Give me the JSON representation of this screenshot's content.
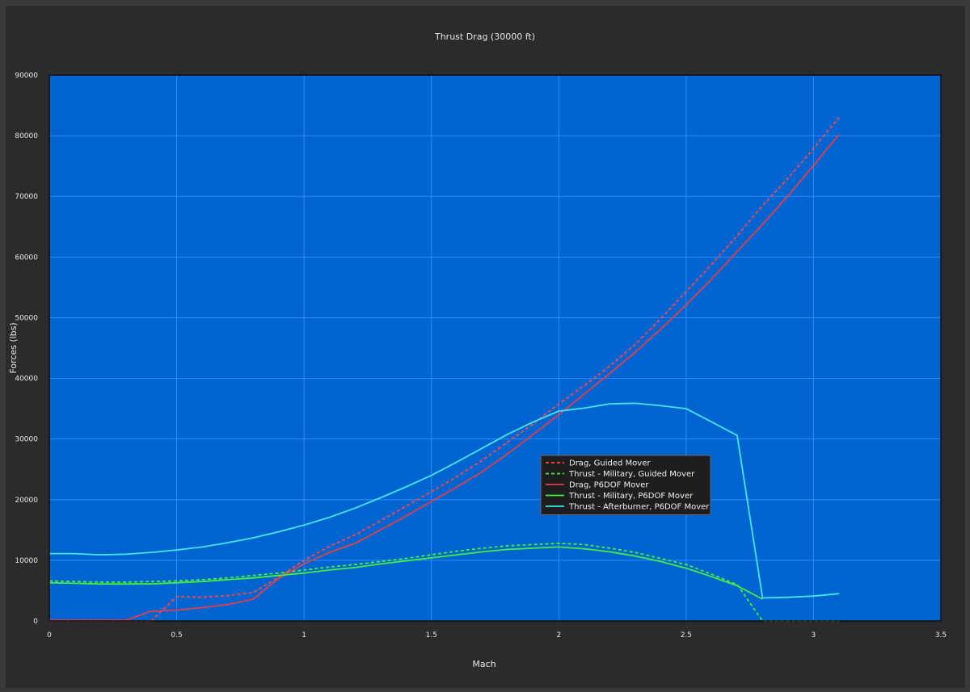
{
  "chart_data": {
    "type": "line",
    "title": "Thrust Drag (30000 ft)",
    "xlabel": "Mach",
    "ylabel": "Forces (lbs)",
    "xlim": [
      0,
      3.5
    ],
    "ylim": [
      0,
      90000
    ],
    "x_ticks": [
      "0",
      "0.5",
      "1",
      "1.5",
      "2",
      "2.5",
      "3",
      "3.5"
    ],
    "y_ticks": [
      "0",
      "10000",
      "20000",
      "30000",
      "40000",
      "50000",
      "60000",
      "70000",
      "80000",
      "90000"
    ],
    "grid": true,
    "legend_position": "center-right",
    "plot_background": "#0064d0",
    "series": [
      {
        "name": "Drag, Guided Mover",
        "color": "#ff4a4a",
        "dashed": true,
        "points": [
          [
            0,
            0
          ],
          [
            0.1,
            0
          ],
          [
            0.2,
            0
          ],
          [
            0.3,
            0
          ],
          [
            0.4,
            0
          ],
          [
            0.5,
            4000
          ],
          [
            0.6,
            3900
          ],
          [
            0.7,
            4200
          ],
          [
            0.8,
            4700
          ],
          [
            0.9,
            7200
          ],
          [
            1.0,
            10000
          ],
          [
            1.1,
            12300
          ],
          [
            1.2,
            14200
          ],
          [
            1.3,
            16500
          ],
          [
            1.4,
            18900
          ],
          [
            1.5,
            21300
          ],
          [
            1.6,
            23800
          ],
          [
            1.7,
            26500
          ],
          [
            1.8,
            29500
          ],
          [
            1.9,
            32500
          ],
          [
            2.0,
            35800
          ],
          [
            2.1,
            38800
          ],
          [
            2.2,
            42000
          ],
          [
            2.3,
            45600
          ],
          [
            2.4,
            49800
          ],
          [
            2.5,
            54300
          ],
          [
            2.6,
            58800
          ],
          [
            2.7,
            63500
          ],
          [
            2.8,
            68500
          ],
          [
            2.9,
            73000
          ],
          [
            3.0,
            77900
          ],
          [
            3.1,
            83000
          ]
        ]
      },
      {
        "name": "Thrust - Military, Guided Mover",
        "color": "#44ee44",
        "dashed": true,
        "points": [
          [
            0,
            6600
          ],
          [
            0.1,
            6500
          ],
          [
            0.2,
            6400
          ],
          [
            0.3,
            6400
          ],
          [
            0.4,
            6500
          ],
          [
            0.5,
            6600
          ],
          [
            0.6,
            6800
          ],
          [
            0.7,
            7100
          ],
          [
            0.8,
            7500
          ],
          [
            0.9,
            7900
          ],
          [
            1.0,
            8400
          ],
          [
            1.1,
            8900
          ],
          [
            1.2,
            9300
          ],
          [
            1.3,
            9800
          ],
          [
            1.4,
            10300
          ],
          [
            1.5,
            10900
          ],
          [
            1.6,
            11500
          ],
          [
            1.7,
            12000
          ],
          [
            1.8,
            12400
          ],
          [
            1.9,
            12600
          ],
          [
            2.0,
            12800
          ],
          [
            2.1,
            12600
          ],
          [
            2.2,
            12000
          ],
          [
            2.3,
            11300
          ],
          [
            2.4,
            10300
          ],
          [
            2.5,
            9300
          ],
          [
            2.6,
            7700
          ],
          [
            2.7,
            6000
          ],
          [
            2.8,
            0
          ],
          [
            2.9,
            0
          ],
          [
            3.0,
            0
          ],
          [
            3.1,
            0
          ]
        ]
      },
      {
        "name": "Drag, P6DOF Mover",
        "color": "#e0404a",
        "dashed": false,
        "points": [
          [
            0,
            100
          ],
          [
            0.1,
            100
          ],
          [
            0.2,
            100
          ],
          [
            0.3,
            100
          ],
          [
            0.4,
            1600
          ],
          [
            0.5,
            1800
          ],
          [
            0.6,
            2200
          ],
          [
            0.7,
            2700
          ],
          [
            0.8,
            3600
          ],
          [
            0.9,
            7000
          ],
          [
            1.0,
            9400
          ],
          [
            1.1,
            11300
          ],
          [
            1.2,
            12800
          ],
          [
            1.3,
            15000
          ],
          [
            1.4,
            17300
          ],
          [
            1.5,
            19700
          ],
          [
            1.6,
            22100
          ],
          [
            1.7,
            24600
          ],
          [
            1.8,
            27600
          ],
          [
            1.9,
            30800
          ],
          [
            2.0,
            34000
          ],
          [
            2.1,
            37400
          ],
          [
            2.2,
            40800
          ],
          [
            2.3,
            44300
          ],
          [
            2.4,
            48100
          ],
          [
            2.5,
            52100
          ],
          [
            2.6,
            56400
          ],
          [
            2.7,
            60900
          ],
          [
            2.8,
            65400
          ],
          [
            2.9,
            70100
          ],
          [
            3.0,
            75100
          ],
          [
            3.1,
            80200
          ]
        ]
      },
      {
        "name": "Thrust - Military, P6DOF Mover",
        "color": "#44ee44",
        "dashed": false,
        "points": [
          [
            0,
            6300
          ],
          [
            0.1,
            6200
          ],
          [
            0.2,
            6100
          ],
          [
            0.3,
            6100
          ],
          [
            0.4,
            6100
          ],
          [
            0.5,
            6300
          ],
          [
            0.6,
            6500
          ],
          [
            0.7,
            6800
          ],
          [
            0.8,
            7100
          ],
          [
            0.9,
            7500
          ],
          [
            1.0,
            7900
          ],
          [
            1.1,
            8400
          ],
          [
            1.2,
            8800
          ],
          [
            1.3,
            9400
          ],
          [
            1.4,
            9900
          ],
          [
            1.5,
            10400
          ],
          [
            1.6,
            10900
          ],
          [
            1.7,
            11400
          ],
          [
            1.8,
            11800
          ],
          [
            1.9,
            12000
          ],
          [
            2.0,
            12200
          ],
          [
            2.1,
            11900
          ],
          [
            2.2,
            11400
          ],
          [
            2.3,
            10700
          ],
          [
            2.4,
            9800
          ],
          [
            2.5,
            8700
          ],
          [
            2.6,
            7300
          ],
          [
            2.7,
            5800
          ],
          [
            2.8,
            3600
          ]
        ]
      },
      {
        "name": "Thrust - Afterburner, P6DOF Mover",
        "color": "#40e8f0",
        "dashed": false,
        "points": [
          [
            0,
            11100
          ],
          [
            0.1,
            11100
          ],
          [
            0.2,
            10900
          ],
          [
            0.3,
            11000
          ],
          [
            0.4,
            11300
          ],
          [
            0.5,
            11700
          ],
          [
            0.6,
            12200
          ],
          [
            0.7,
            12900
          ],
          [
            0.8,
            13700
          ],
          [
            0.9,
            14700
          ],
          [
            1.0,
            15800
          ],
          [
            1.1,
            17100
          ],
          [
            1.2,
            18600
          ],
          [
            1.3,
            20300
          ],
          [
            1.4,
            22100
          ],
          [
            1.5,
            24000
          ],
          [
            1.6,
            26200
          ],
          [
            1.7,
            28500
          ],
          [
            1.8,
            30800
          ],
          [
            1.9,
            32800
          ],
          [
            2.0,
            34600
          ],
          [
            2.1,
            35100
          ],
          [
            2.2,
            35800
          ],
          [
            2.3,
            35900
          ],
          [
            2.4,
            35500
          ],
          [
            2.5,
            35000
          ],
          [
            2.6,
            32800
          ],
          [
            2.7,
            30600
          ],
          [
            2.8,
            3800
          ],
          [
            2.9,
            3900
          ],
          [
            3.0,
            4100
          ],
          [
            3.1,
            4500
          ]
        ]
      }
    ]
  }
}
